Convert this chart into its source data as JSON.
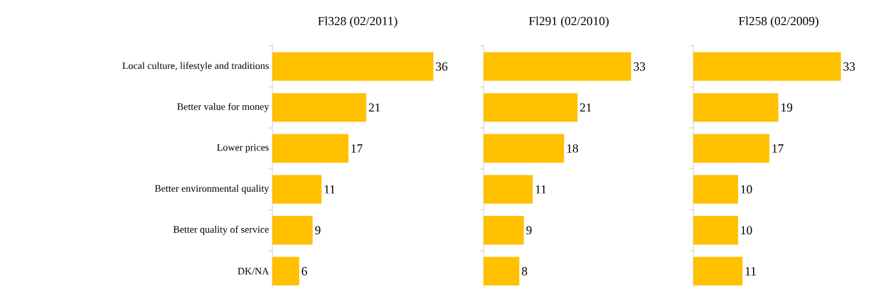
{
  "chart_data": [
    {
      "type": "bar",
      "orientation": "horizontal",
      "title": "Fl328 (02/2011)",
      "categories": [
        "Local culture, lifestyle and traditions",
        "Better value for money",
        "Lower prices",
        "Better environmental quality",
        "Better quality of service",
        "DK/NA"
      ],
      "values": [
        36,
        21,
        17,
        11,
        9,
        6
      ],
      "color": "#ffc000",
      "data_labels": true,
      "tick_labels": "y"
    },
    {
      "type": "bar",
      "orientation": "horizontal",
      "title": "Fl291 (02/2010)",
      "categories": [
        null,
        null,
        null,
        null,
        null,
        null
      ],
      "values": [
        33,
        21,
        18,
        11,
        9,
        8
      ],
      "color": "#ffc000",
      "data_labels": true,
      "tick_labels": false
    },
    {
      "type": "bar",
      "orientation": "horizontal",
      "title": "Fl258 (02/2009)",
      "categories": [
        null,
        null,
        null,
        null,
        null,
        null
      ],
      "values": [
        33,
        19,
        17,
        10,
        10,
        11
      ],
      "color": "#ffc000",
      "data_labels": true,
      "tick_labels": false
    }
  ]
}
